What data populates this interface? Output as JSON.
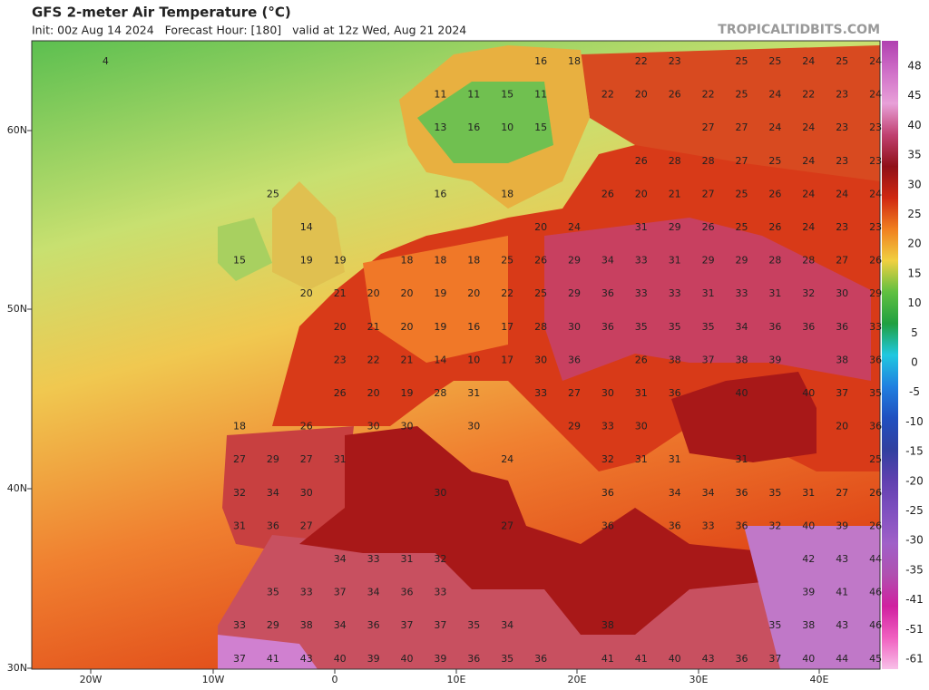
{
  "header": {
    "title": "GFS 2-meter Air Temperature (°C)",
    "subtitle": "Init: 00z Aug 14 2024   Forecast Hour: [180]   valid at 12z Wed, Aug 21 2024",
    "watermark": "TROPICALTIDBITS.COM"
  },
  "map": {
    "lat_labels": [
      "60N",
      "50N",
      "40N",
      "30N"
    ],
    "lon_labels": [
      "20W",
      "10W",
      "0",
      "10E",
      "20E",
      "30E",
      "40E"
    ],
    "temperatures": [
      [
        4,
        16,
        18,
        22,
        23,
        25,
        25,
        24,
        25,
        24
      ],
      [
        11,
        11,
        15,
        11,
        22,
        20,
        26,
        22,
        25,
        24,
        22,
        23,
        24
      ],
      [
        13,
        16,
        10,
        15,
        27,
        27,
        24,
        24,
        23,
        23
      ],
      [
        26,
        28,
        28,
        27,
        25,
        24,
        23,
        23
      ],
      [
        25,
        16,
        18,
        26,
        20,
        21,
        27,
        25,
        26,
        24,
        24,
        24
      ],
      [
        14,
        20,
        24,
        31,
        29,
        26,
        25,
        26,
        24,
        23,
        23
      ],
      [
        15,
        19,
        19,
        18,
        18,
        18,
        25,
        26,
        29,
        34,
        33,
        31,
        29,
        29,
        28,
        28,
        27,
        26
      ],
      [
        20,
        21,
        20,
        20,
        19,
        20,
        22,
        25,
        29,
        36,
        33,
        33,
        31,
        33,
        31,
        32,
        30,
        29
      ],
      [
        20,
        21,
        20,
        19,
        16,
        17,
        28,
        30,
        36,
        35,
        35,
        35,
        34,
        36,
        36,
        36,
        33
      ],
      [
        23,
        22,
        21,
        14,
        10,
        17,
        30,
        36,
        26,
        38,
        37,
        38,
        39,
        38,
        36
      ],
      [
        26,
        20,
        19,
        28,
        31,
        33,
        27,
        30,
        31,
        36,
        40,
        40,
        37,
        35
      ],
      [
        18,
        26,
        30,
        30,
        30,
        29,
        33,
        30,
        20,
        36
      ],
      [
        27,
        29,
        27,
        31,
        24,
        32,
        31,
        31,
        31,
        25
      ],
      [
        32,
        34,
        30,
        30,
        36,
        34,
        34,
        36,
        35,
        31,
        27,
        26
      ],
      [
        31,
        36,
        27,
        27,
        36,
        36,
        33,
        36,
        32,
        40,
        39,
        26
      ],
      [
        34,
        33,
        31,
        32,
        42,
        43,
        44
      ],
      [
        35,
        33,
        37,
        34,
        36,
        33,
        39,
        41,
        46
      ],
      [
        33,
        29,
        38,
        34,
        36,
        37,
        37,
        35,
        34,
        38,
        35,
        38,
        43,
        46
      ],
      [
        37,
        41,
        43,
        40,
        39,
        40,
        39,
        36,
        35,
        36,
        41,
        41,
        40,
        43,
        36,
        37,
        40,
        44,
        45
      ]
    ]
  },
  "colorbar": {
    "ticks": [
      48,
      45,
      40,
      35,
      30,
      25,
      20,
      15,
      10,
      5,
      0,
      -5,
      -10,
      -15,
      -20,
      -25,
      -30,
      -35,
      -41,
      -51,
      -61
    ],
    "colors": [
      "#b040b0",
      "#d070c8",
      "#e8a0d8",
      "#c04070",
      "#901018",
      "#d02810",
      "#f08020",
      "#f0d040",
      "#60c040",
      "#20a040",
      "#20c8e0",
      "#2080e0",
      "#2050c0",
      "#3040a0",
      "#6040b0",
      "#8050c0",
      "#a060c8",
      "#b050b0",
      "#d020a0",
      "#f060c0",
      "#f8c0e8"
    ]
  }
}
